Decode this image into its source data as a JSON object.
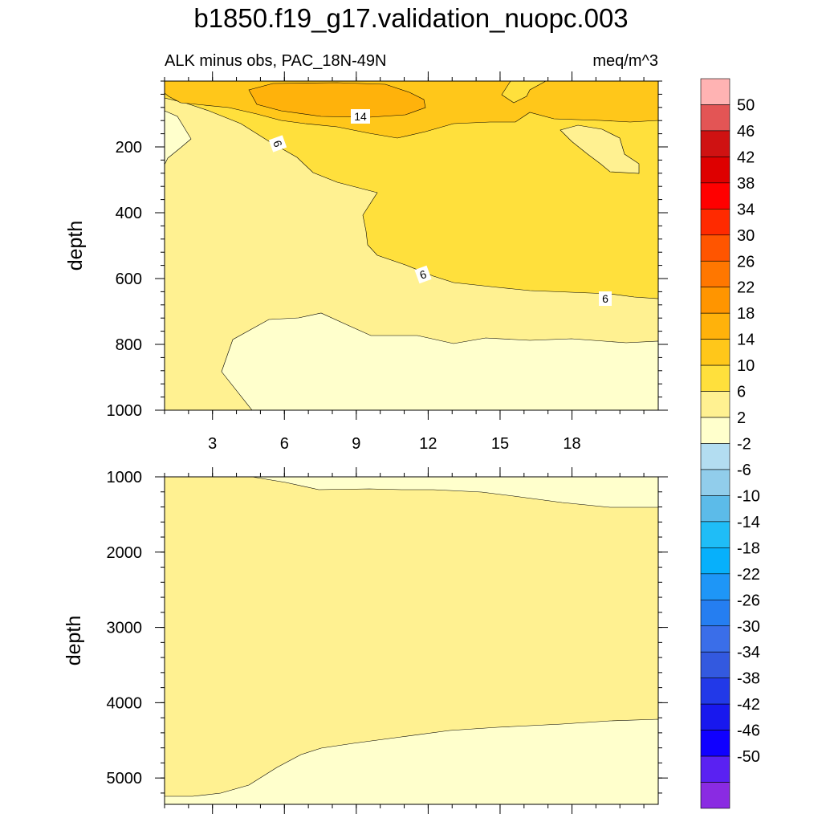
{
  "chart_data": {
    "type": "contour",
    "title": "b1850.f19_g17.validation_nuopc.003",
    "subtitle_left": "ALK minus obs, PAC_18N-49N",
    "subtitle_right": "meq/m^3",
    "ylabel": "depth",
    "colors": {
      "c_m2_2": "#ffffcc",
      "c_2_6": "#fff191",
      "c_6_10": "#ffe03c",
      "c_10_14": "#ffc71a",
      "c_14_18": "#ffb20b"
    },
    "contour_labels": [
      "14",
      "6",
      "6",
      "6"
    ],
    "upper_panel": {
      "xlim": [
        1,
        21.6
      ],
      "ylim": [
        1000,
        0
      ],
      "x_ticks": [
        3,
        6,
        9,
        12,
        15,
        18
      ],
      "x_tick_labels": [
        "3",
        "6",
        "9",
        "12",
        "15",
        "18"
      ],
      "y_ticks": [
        200,
        400,
        600,
        800,
        1000
      ],
      "y_tick_labels": [
        "200",
        "400",
        "600",
        "800",
        "1000"
      ]
    },
    "lower_panel": {
      "xlim": [
        1,
        21.6
      ],
      "ylim": [
        5350,
        1000
      ],
      "x_ticks": [
        3,
        6,
        9,
        12,
        15,
        18
      ],
      "y_ticks": [
        1000,
        2000,
        3000,
        4000,
        5000
      ],
      "y_tick_labels": [
        "1000",
        "2000",
        "3000",
        "4000",
        "5000"
      ]
    },
    "colorbar": {
      "levels": [
        "50",
        "46",
        "42",
        "38",
        "34",
        "30",
        "26",
        "22",
        "18",
        "14",
        "10",
        "6",
        "2",
        "-2",
        "-6",
        "-10",
        "-14",
        "-18",
        "-22",
        "-26",
        "-30",
        "-34",
        "-38",
        "-42",
        "-46",
        "-50"
      ],
      "colors": [
        "#ffb3b3",
        "#e35555",
        "#cf1212",
        "#de0000",
        "#ff0000",
        "#ff2a00",
        "#ff5500",
        "#ff7700",
        "#ff9500",
        "#ffb20b",
        "#ffc71a",
        "#ffe03c",
        "#fff191",
        "#ffffcc",
        "#b3ddf1",
        "#91cdeb",
        "#5cbbe9",
        "#1fbdf7",
        "#07b0fb",
        "#1e96f7",
        "#257ef1",
        "#3a6ee9",
        "#3359df",
        "#2239e8",
        "#1818ee",
        "#1000ff",
        "#5a21f2",
        "#8a2be2"
      ]
    }
  }
}
